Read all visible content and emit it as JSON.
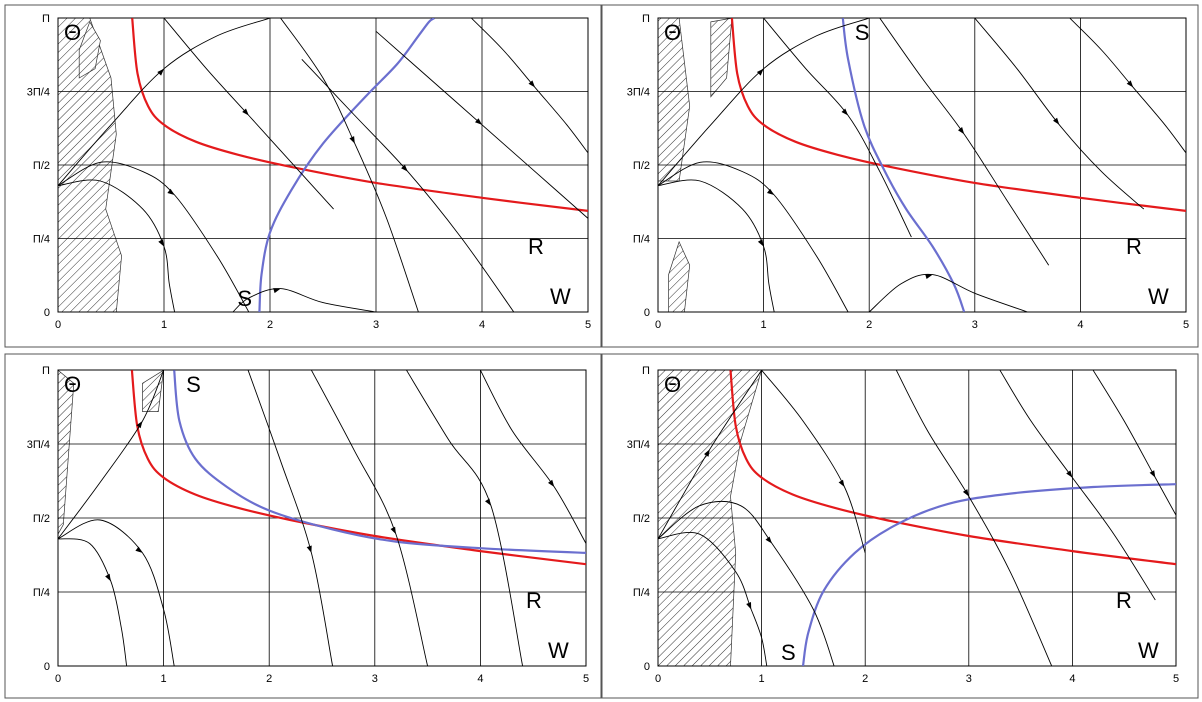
{
  "colors": {
    "red_curve": "#e41a1c",
    "blue_curve": "#6b6fcf",
    "trajectory": "#000000",
    "hatch": "#333333"
  },
  "chart_data": [
    {
      "type": "line",
      "panel": "top-left",
      "xlim": [
        0,
        5
      ],
      "ylim": [
        0,
        3.1416
      ],
      "x_ticks": [
        "0",
        "1",
        "2",
        "3",
        "4",
        "5"
      ],
      "y_ticks": [
        "0",
        "Π/4",
        "Π/2",
        "3Π/4",
        "Π"
      ],
      "labels": {
        "theta": "Θ",
        "r": "R",
        "s": "S",
        "w": "W"
      },
      "grid": true,
      "series": [
        {
          "role": "red",
          "x": [
            0.7,
            0.75,
            0.85,
            1.0,
            1.3,
            1.7,
            2.2,
            3.0,
            4.0,
            5.0
          ],
          "y": [
            3.14,
            2.55,
            2.2,
            2.0,
            1.82,
            1.68,
            1.55,
            1.38,
            1.22,
            1.08
          ]
        },
        {
          "role": "blue",
          "x": [
            1.9,
            1.92,
            2.0,
            2.2,
            2.5,
            2.9,
            3.2,
            3.4,
            3.5,
            3.55
          ],
          "y": [
            0.0,
            0.4,
            0.85,
            1.3,
            1.8,
            2.3,
            2.65,
            2.95,
            3.1,
            3.14
          ]
        },
        {
          "role": "traj",
          "x": [
            0.0,
            0.4,
            0.8,
            1.0,
            1.05,
            1.1
          ],
          "y": [
            1.35,
            1.4,
            1.1,
            0.7,
            0.3,
            0.0
          ]
        },
        {
          "role": "traj",
          "x": [
            0.0,
            0.4,
            0.8,
            1.1,
            1.5,
            1.8
          ],
          "y": [
            1.35,
            1.6,
            1.5,
            1.25,
            0.6,
            0.0
          ]
        },
        {
          "role": "traj",
          "x": [
            0.0,
            0.5,
            1.0,
            1.5,
            2.0
          ],
          "y": [
            1.35,
            2.0,
            2.6,
            2.95,
            3.14
          ]
        },
        {
          "role": "traj",
          "x": [
            1.0,
            1.4,
            1.8,
            2.2,
            2.6
          ],
          "y": [
            3.14,
            2.6,
            2.1,
            1.6,
            1.1
          ]
        },
        {
          "role": "traj",
          "x": [
            2.1,
            2.5,
            2.8,
            3.1,
            3.4
          ],
          "y": [
            3.14,
            2.5,
            1.8,
            1.0,
            0.0
          ]
        },
        {
          "role": "traj",
          "x": [
            2.3,
            2.8,
            3.3,
            3.8,
            4.3
          ],
          "y": [
            2.7,
            2.1,
            1.5,
            0.8,
            0.0
          ]
        },
        {
          "role": "traj",
          "x": [
            3.0,
            3.5,
            4.0,
            4.5,
            5.0
          ],
          "y": [
            3.0,
            2.5,
            2.0,
            1.5,
            1.0
          ]
        },
        {
          "role": "traj",
          "x": [
            3.9,
            4.2,
            4.5,
            4.8,
            5.0
          ],
          "y": [
            3.14,
            2.8,
            2.4,
            2.0,
            1.7
          ]
        },
        {
          "role": "traj",
          "x": [
            1.65,
            1.8,
            2.1,
            2.5,
            3.0
          ],
          "y": [
            0.0,
            0.15,
            0.25,
            0.1,
            0.0
          ]
        }
      ],
      "hatched_regions": [
        {
          "x": [
            0.0,
            0.3,
            0.5,
            0.55,
            0.5,
            0.45,
            0.6,
            0.55,
            0.35,
            0.0
          ],
          "y": [
            3.14,
            3.14,
            2.5,
            1.9,
            1.5,
            1.1,
            0.6,
            0.0,
            0.0,
            0.0
          ]
        },
        {
          "x": [
            0.2,
            0.35,
            0.4,
            0.3,
            0.2
          ],
          "y": [
            2.5,
            2.6,
            2.9,
            3.1,
            2.8
          ]
        }
      ]
    },
    {
      "type": "line",
      "panel": "top-right",
      "xlim": [
        0,
        5
      ],
      "ylim": [
        0,
        3.1416
      ],
      "x_ticks": [
        "0",
        "1",
        "2",
        "3",
        "4",
        "5"
      ],
      "y_ticks": [
        "0",
        "Π/4",
        "Π/2",
        "3Π/4",
        "Π"
      ],
      "labels": {
        "theta": "Θ",
        "r": "R",
        "s": "S",
        "w": "W"
      },
      "grid": true,
      "series": [
        {
          "role": "red",
          "x": [
            0.7,
            0.75,
            0.85,
            1.0,
            1.3,
            1.7,
            2.2,
            3.0,
            4.0,
            5.0
          ],
          "y": [
            3.14,
            2.55,
            2.2,
            2.0,
            1.82,
            1.68,
            1.55,
            1.38,
            1.22,
            1.08
          ]
        },
        {
          "role": "blue",
          "x": [
            1.75,
            1.8,
            1.95,
            2.15,
            2.35,
            2.6,
            2.8,
            2.9
          ],
          "y": [
            3.14,
            2.7,
            2.0,
            1.5,
            1.1,
            0.7,
            0.3,
            0.0
          ]
        },
        {
          "role": "traj",
          "x": [
            0.0,
            0.4,
            0.8,
            1.0,
            1.05,
            1.1
          ],
          "y": [
            1.35,
            1.4,
            1.1,
            0.7,
            0.3,
            0.0
          ]
        },
        {
          "role": "traj",
          "x": [
            0.0,
            0.4,
            0.8,
            1.1,
            1.5,
            1.8
          ],
          "y": [
            1.35,
            1.6,
            1.5,
            1.25,
            0.6,
            0.0
          ]
        },
        {
          "role": "traj",
          "x": [
            0.0,
            0.5,
            1.0,
            1.5,
            2.0
          ],
          "y": [
            1.35,
            2.0,
            2.6,
            2.95,
            3.14
          ]
        },
        {
          "role": "traj",
          "x": [
            1.0,
            1.4,
            1.8,
            2.1,
            2.4
          ],
          "y": [
            3.14,
            2.6,
            2.1,
            1.5,
            0.8
          ]
        },
        {
          "role": "traj",
          "x": [
            2.1,
            2.5,
            2.9,
            3.3,
            3.7
          ],
          "y": [
            3.14,
            2.5,
            1.9,
            1.2,
            0.5
          ]
        },
        {
          "role": "traj",
          "x": [
            3.0,
            3.4,
            3.8,
            4.2,
            4.6
          ],
          "y": [
            3.14,
            2.6,
            2.0,
            1.5,
            1.1
          ]
        },
        {
          "role": "traj",
          "x": [
            3.9,
            4.2,
            4.5,
            4.8,
            5.0
          ],
          "y": [
            3.14,
            2.8,
            2.4,
            2.0,
            1.7
          ]
        },
        {
          "role": "traj",
          "x": [
            2.0,
            2.3,
            2.6,
            3.0,
            3.5
          ],
          "y": [
            0.0,
            0.3,
            0.4,
            0.2,
            0.0
          ]
        }
      ],
      "hatched_regions": [
        {
          "x": [
            0.0,
            0.2,
            0.3,
            0.2,
            0.0
          ],
          "y": [
            3.14,
            3.14,
            2.2,
            1.4,
            1.4
          ]
        },
        {
          "x": [
            0.5,
            0.7,
            0.65,
            0.5
          ],
          "y": [
            3.1,
            3.14,
            2.5,
            2.3
          ]
        },
        {
          "x": [
            0.1,
            0.25,
            0.3,
            0.2,
            0.1
          ],
          "y": [
            0.0,
            0.0,
            0.5,
            0.75,
            0.4
          ]
        }
      ]
    },
    {
      "type": "line",
      "panel": "bottom-left",
      "xlim": [
        0,
        5
      ],
      "ylim": [
        0,
        3.1416
      ],
      "x_ticks": [
        "0",
        "1",
        "2",
        "3",
        "4",
        "5"
      ],
      "y_ticks": [
        "0",
        "Π/4",
        "Π/2",
        "3Π/4",
        "Π"
      ],
      "labels": {
        "theta": "Θ",
        "r": "R",
        "s": "S",
        "w": "W"
      },
      "grid": true,
      "series": [
        {
          "role": "red",
          "x": [
            0.7,
            0.75,
            0.85,
            1.0,
            1.3,
            1.7,
            2.2,
            3.0,
            4.0,
            5.0
          ],
          "y": [
            3.14,
            2.55,
            2.2,
            2.0,
            1.82,
            1.68,
            1.55,
            1.38,
            1.22,
            1.08
          ]
        },
        {
          "role": "blue",
          "x": [
            1.1,
            1.15,
            1.3,
            1.6,
            2.0,
            2.6,
            3.2,
            4.0,
            5.0
          ],
          "y": [
            3.14,
            2.6,
            2.2,
            1.9,
            1.65,
            1.45,
            1.32,
            1.25,
            1.2
          ]
        },
        {
          "role": "traj",
          "x": [
            0.0,
            0.3,
            0.5,
            0.6,
            0.65
          ],
          "y": [
            1.35,
            1.3,
            0.9,
            0.4,
            0.0
          ]
        },
        {
          "role": "traj",
          "x": [
            0.0,
            0.4,
            0.8,
            1.0,
            1.1
          ],
          "y": [
            1.35,
            1.55,
            1.2,
            0.6,
            0.0
          ]
        },
        {
          "role": "traj",
          "x": [
            0.0,
            0.4,
            0.8,
            1.0
          ],
          "y": [
            1.35,
            1.95,
            2.6,
            3.14
          ]
        },
        {
          "role": "traj",
          "x": [
            1.8,
            2.1,
            2.4,
            2.6
          ],
          "y": [
            3.14,
            2.2,
            1.2,
            0.0
          ]
        },
        {
          "role": "traj",
          "x": [
            2.4,
            2.8,
            3.2,
            3.5
          ],
          "y": [
            3.14,
            2.3,
            1.4,
            0.0
          ]
        },
        {
          "role": "traj",
          "x": [
            3.3,
            3.7,
            4.1,
            4.4
          ],
          "y": [
            3.14,
            2.4,
            1.7,
            0.0
          ]
        },
        {
          "role": "traj",
          "x": [
            4.0,
            4.3,
            4.7,
            5.0
          ],
          "y": [
            3.14,
            2.5,
            1.9,
            1.3
          ]
        }
      ],
      "hatched_regions": [
        {
          "x": [
            0.0,
            0.15,
            0.05,
            0.0
          ],
          "y": [
            3.14,
            3.0,
            1.5,
            1.4
          ]
        },
        {
          "x": [
            0.8,
            1.0,
            0.95,
            0.8
          ],
          "y": [
            3.0,
            3.14,
            2.7,
            2.7
          ]
        }
      ]
    },
    {
      "type": "line",
      "panel": "bottom-right",
      "xlim": [
        0,
        5
      ],
      "ylim": [
        0,
        3.1416
      ],
      "x_ticks": [
        "0",
        "1",
        "2",
        "3",
        "4",
        "5"
      ],
      "y_ticks": [
        "0",
        "Π/4",
        "Π/2",
        "3Π/4",
        "Π"
      ],
      "labels": {
        "theta": "Θ",
        "r": "R",
        "s": "S",
        "w": "W"
      },
      "grid": true,
      "series": [
        {
          "role": "red",
          "x": [
            0.7,
            0.75,
            0.85,
            1.0,
            1.3,
            1.7,
            2.2,
            3.0,
            4.0,
            5.0
          ],
          "y": [
            3.14,
            2.55,
            2.2,
            2.0,
            1.82,
            1.68,
            1.55,
            1.38,
            1.22,
            1.08
          ]
        },
        {
          "role": "blue",
          "x": [
            1.4,
            1.45,
            1.6,
            1.9,
            2.3,
            2.8,
            3.4,
            4.2,
            5.0
          ],
          "y": [
            0.0,
            0.35,
            0.8,
            1.2,
            1.5,
            1.72,
            1.83,
            1.9,
            1.93
          ]
        },
        {
          "role": "traj",
          "x": [
            0.0,
            0.4,
            0.75,
            0.9,
            1.0,
            1.05
          ],
          "y": [
            1.35,
            1.4,
            1.0,
            0.6,
            0.3,
            0.0
          ]
        },
        {
          "role": "traj",
          "x": [
            0.0,
            0.4,
            0.8,
            1.1,
            1.5,
            1.7
          ],
          "y": [
            1.35,
            1.7,
            1.7,
            1.3,
            0.6,
            0.0
          ]
        },
        {
          "role": "traj",
          "x": [
            0.0,
            0.5,
            1.0
          ],
          "y": [
            1.35,
            2.3,
            3.14
          ]
        },
        {
          "role": "traj",
          "x": [
            1.0,
            1.4,
            1.8,
            2.0
          ],
          "y": [
            3.14,
            2.6,
            1.9,
            1.2
          ]
        },
        {
          "role": "traj",
          "x": [
            2.3,
            2.6,
            3.0,
            3.4,
            3.8
          ],
          "y": [
            3.14,
            2.5,
            1.8,
            1.0,
            0.0
          ]
        },
        {
          "role": "traj",
          "x": [
            3.3,
            3.6,
            4.0,
            4.4,
            4.8
          ],
          "y": [
            3.14,
            2.6,
            2.0,
            1.4,
            0.7
          ]
        },
        {
          "role": "traj",
          "x": [
            4.2,
            4.5,
            4.8,
            5.0
          ],
          "y": [
            3.14,
            2.6,
            2.0,
            1.6
          ]
        }
      ],
      "hatched_regions": [
        {
          "x": [
            0.0,
            1.0,
            0.8,
            0.7,
            0.75,
            0.7,
            0.0
          ],
          "y": [
            3.14,
            3.14,
            2.4,
            1.8,
            1.2,
            0.0,
            0.0
          ]
        }
      ]
    }
  ]
}
